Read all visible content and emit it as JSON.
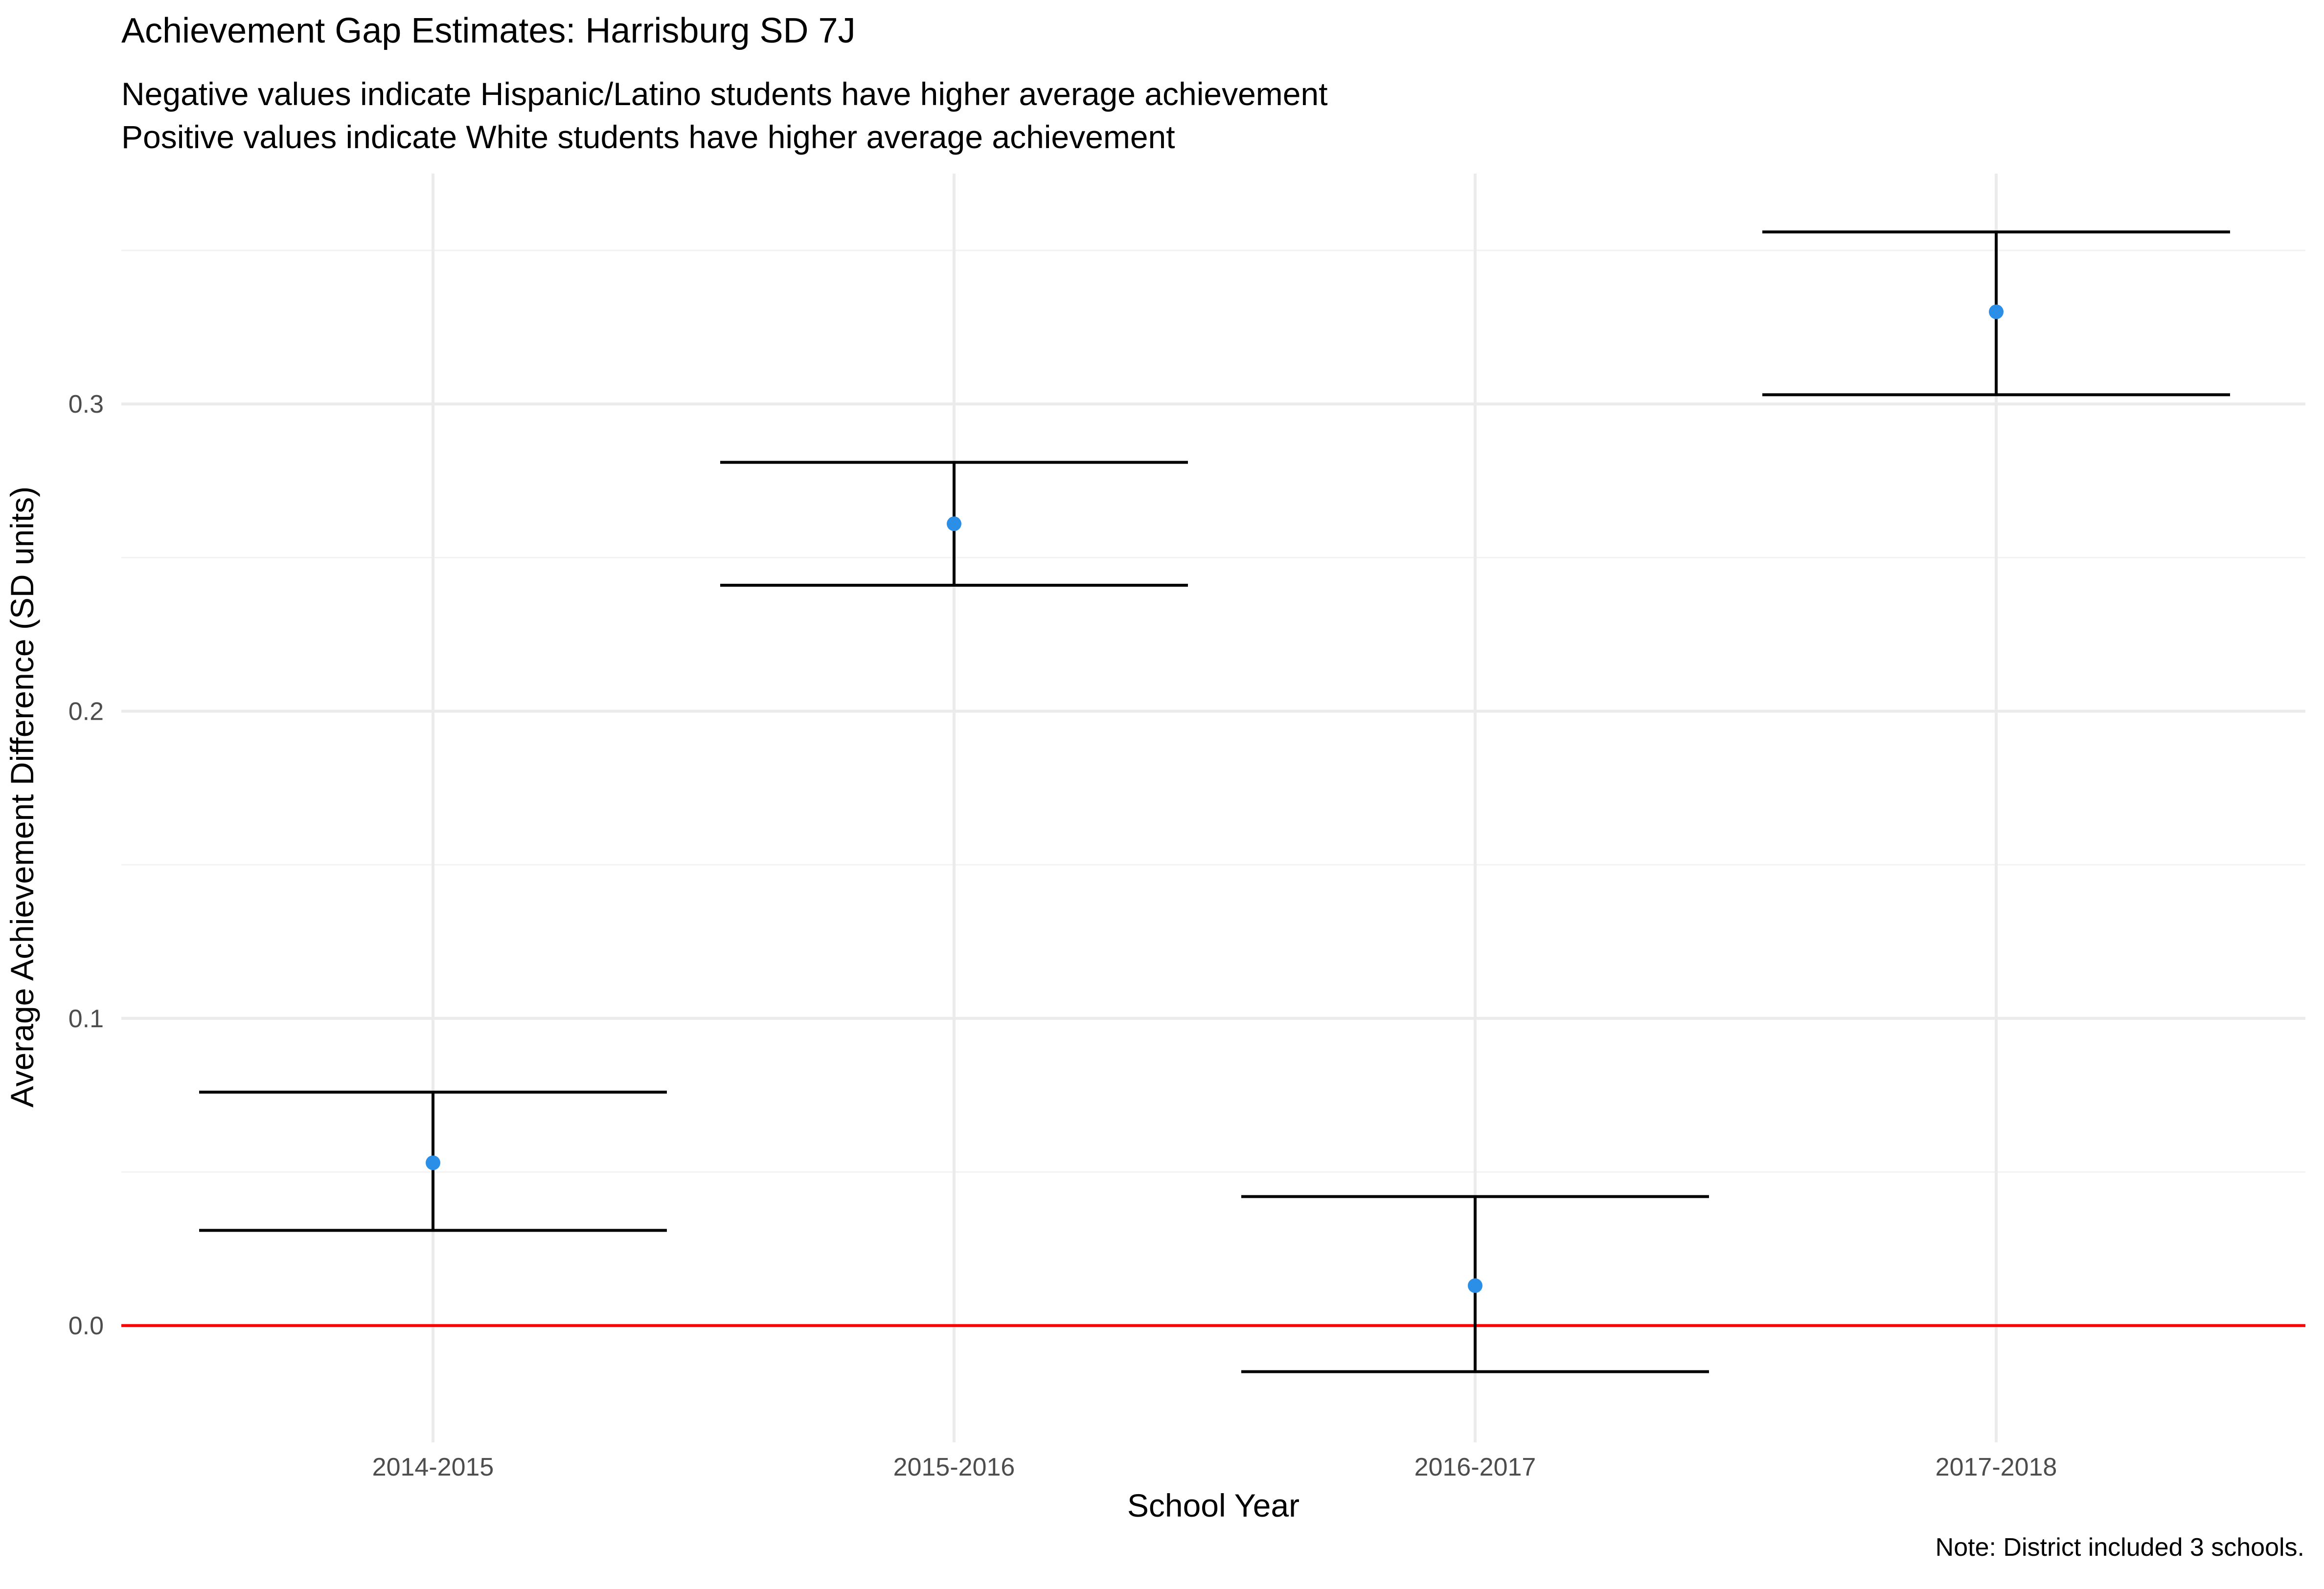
{
  "chart_data": {
    "type": "scatter",
    "title": "Achievement Gap Estimates: Harrisburg SD 7J",
    "subtitle": [
      "Negative values indicate Hispanic/Latino students have higher average achievement",
      "Positive values indicate White students have higher average achievement"
    ],
    "xlabel": "School Year",
    "ylabel": "Average Achievement Difference (SD units)",
    "caption": "Note: District included 3 schools.",
    "categories": [
      "2014-2015",
      "2015-2016",
      "2016-2017",
      "2017-2018"
    ],
    "series": [
      {
        "values": [
          0.053,
          0.261,
          0.013,
          0.33
        ],
        "lower": [
          0.031,
          0.241,
          -0.015,
          0.303
        ],
        "upper": [
          0.076,
          0.281,
          0.042,
          0.356
        ]
      }
    ],
    "ylim": [
      -0.038,
      0.375
    ],
    "yticks": [
      0.0,
      0.1,
      0.2,
      0.3
    ],
    "ytick_labels": [
      "0.0",
      "0.1",
      "0.2",
      "0.3"
    ],
    "reference_line": {
      "y": 0.0,
      "color": "#FF0000"
    },
    "point_color": "#2B8FE8",
    "errorbar_color": "#000000",
    "grid": true,
    "legend": "none"
  }
}
